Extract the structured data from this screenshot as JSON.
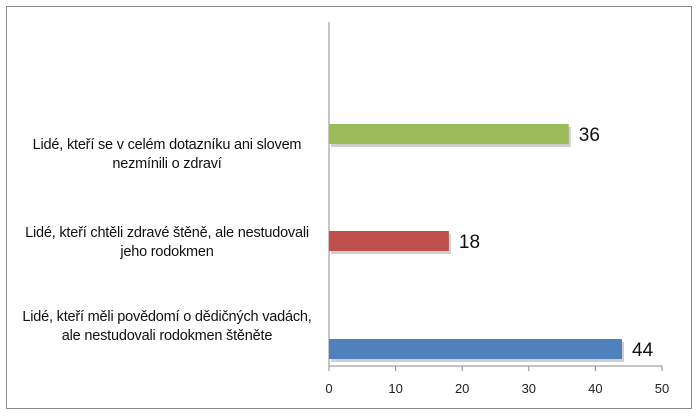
{
  "chart_data": {
    "type": "bar",
    "orientation": "horizontal",
    "categories": [
      "Lidé, kteří se v celém dotazníku ani slovem nezmínili o zdraví",
      "Lidé, kteří chtěli zdravé štěně, ale nestudovali jeho rodokmen",
      "Lidé, kteří měli povědomí o dědičných vadách, ale nestudovali rodokmen štěněte"
    ],
    "values": [
      36,
      18,
      44
    ],
    "colors": [
      "#9bbb59",
      "#c0504d",
      "#4f81bd"
    ],
    "title": "",
    "xlabel": "",
    "ylabel": "",
    "xlim": [
      0,
      50
    ],
    "xticks": [
      0,
      10,
      20,
      30,
      40,
      50
    ],
    "grid": false,
    "legend": "none"
  }
}
